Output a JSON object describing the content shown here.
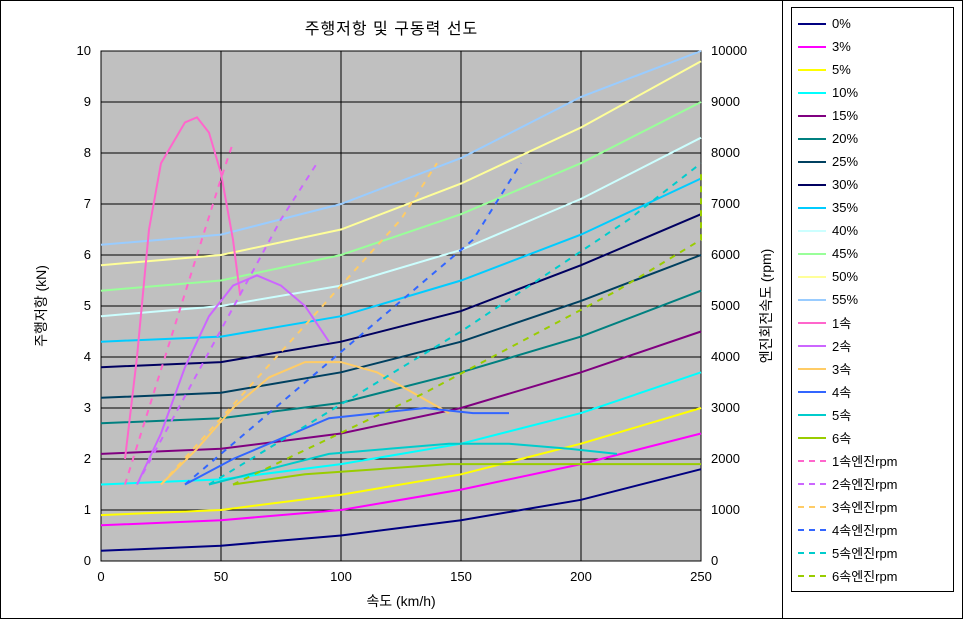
{
  "title": "주행저항 및 구동력 선도",
  "xaxis": {
    "label": "속도 (km/h)",
    "min": 0,
    "max": 250,
    "ticks": [
      0,
      50,
      100,
      150,
      200,
      250
    ],
    "label_fontsize": 14
  },
  "yaxis_left": {
    "label": "주행저항 (kN)",
    "min": 0,
    "max": 10,
    "ticks": [
      0,
      1,
      2,
      3,
      4,
      5,
      6,
      7,
      8,
      9,
      10
    ],
    "label_fontsize": 14
  },
  "yaxis_right": {
    "label": "엔진회전속도 (rpm)",
    "min": 0,
    "max": 10000,
    "ticks": [
      0,
      1000,
      2000,
      3000,
      4000,
      5000,
      6000,
      7000,
      8000,
      9000,
      10000
    ],
    "label_fontsize": 14
  },
  "plot_bg": "#c0c0c0",
  "grid_color": "#000000",
  "series_resistance": [
    {
      "id": "0%",
      "color": "#000080",
      "points": [
        [
          0,
          0.2
        ],
        [
          50,
          0.3
        ],
        [
          100,
          0.5
        ],
        [
          150,
          0.8
        ],
        [
          200,
          1.2
        ],
        [
          250,
          1.8
        ]
      ]
    },
    {
      "id": "3%",
      "color": "#ff00ff",
      "points": [
        [
          0,
          0.7
        ],
        [
          50,
          0.8
        ],
        [
          100,
          1.0
        ],
        [
          150,
          1.4
        ],
        [
          200,
          1.9
        ],
        [
          250,
          2.5
        ]
      ]
    },
    {
      "id": "5%",
      "color": "#ffff00",
      "points": [
        [
          0,
          0.9
        ],
        [
          50,
          1.0
        ],
        [
          100,
          1.3
        ],
        [
          150,
          1.7
        ],
        [
          200,
          2.3
        ],
        [
          250,
          3.0
        ]
      ]
    },
    {
      "id": "10%",
      "color": "#00ffff",
      "points": [
        [
          0,
          1.5
        ],
        [
          50,
          1.6
        ],
        [
          100,
          1.9
        ],
        [
          150,
          2.3
        ],
        [
          200,
          2.9
        ],
        [
          250,
          3.7
        ]
      ]
    },
    {
      "id": "15%",
      "color": "#800080",
      "points": [
        [
          0,
          2.1
        ],
        [
          50,
          2.2
        ],
        [
          100,
          2.5
        ],
        [
          150,
          3.0
        ],
        [
          200,
          3.7
        ],
        [
          250,
          4.5
        ]
      ]
    },
    {
      "id": "20%",
      "color": "#008080",
      "points": [
        [
          0,
          2.7
        ],
        [
          50,
          2.8
        ],
        [
          100,
          3.1
        ],
        [
          150,
          3.7
        ],
        [
          200,
          4.4
        ],
        [
          250,
          5.3
        ]
      ]
    },
    {
      "id": "25%",
      "color": "#004060",
      "points": [
        [
          0,
          3.2
        ],
        [
          50,
          3.3
        ],
        [
          100,
          3.7
        ],
        [
          150,
          4.3
        ],
        [
          200,
          5.1
        ],
        [
          250,
          6.0
        ]
      ]
    },
    {
      "id": "30%",
      "color": "#000060",
      "points": [
        [
          0,
          3.8
        ],
        [
          50,
          3.9
        ],
        [
          100,
          4.3
        ],
        [
          150,
          4.9
        ],
        [
          200,
          5.8
        ],
        [
          250,
          6.8
        ]
      ]
    },
    {
      "id": "35%",
      "color": "#00ccff",
      "points": [
        [
          0,
          4.3
        ],
        [
          50,
          4.4
        ],
        [
          100,
          4.8
        ],
        [
          150,
          5.5
        ],
        [
          200,
          6.4
        ],
        [
          250,
          7.5
        ]
      ]
    },
    {
      "id": "40%",
      "color": "#ccffff",
      "points": [
        [
          0,
          4.8
        ],
        [
          50,
          5.0
        ],
        [
          100,
          5.4
        ],
        [
          150,
          6.1
        ],
        [
          200,
          7.1
        ],
        [
          250,
          8.3
        ]
      ]
    },
    {
      "id": "45%",
      "color": "#99ff99",
      "points": [
        [
          0,
          5.3
        ],
        [
          50,
          5.5
        ],
        [
          100,
          6.0
        ],
        [
          150,
          6.8
        ],
        [
          200,
          7.8
        ],
        [
          250,
          9.0
        ]
      ]
    },
    {
      "id": "50%",
      "color": "#ffff99",
      "points": [
        [
          0,
          5.8
        ],
        [
          50,
          6.0
        ],
        [
          100,
          6.5
        ],
        [
          150,
          7.4
        ],
        [
          200,
          8.5
        ],
        [
          250,
          9.8
        ]
      ]
    },
    {
      "id": "55%",
      "color": "#99ccff",
      "points": [
        [
          0,
          6.2
        ],
        [
          50,
          6.4
        ],
        [
          100,
          7.0
        ],
        [
          150,
          7.9
        ],
        [
          200,
          9.1
        ],
        [
          250,
          10.0
        ]
      ]
    }
  ],
  "series_gear_force": [
    {
      "id": "1속",
      "color": "#ff66cc",
      "dash": "none",
      "points": [
        [
          10,
          2.0
        ],
        [
          15,
          4.0
        ],
        [
          20,
          6.5
        ],
        [
          25,
          7.8
        ],
        [
          30,
          8.2
        ],
        [
          35,
          8.6
        ],
        [
          40,
          8.7
        ],
        [
          45,
          8.4
        ],
        [
          50,
          7.6
        ],
        [
          55,
          6.3
        ],
        [
          58,
          5.2
        ]
      ]
    },
    {
      "id": "2속",
      "color": "#cc66ff",
      "dash": "none",
      "points": [
        [
          15,
          1.5
        ],
        [
          25,
          2.5
        ],
        [
          35,
          3.8
        ],
        [
          45,
          4.8
        ],
        [
          55,
          5.4
        ],
        [
          65,
          5.6
        ],
        [
          75,
          5.4
        ],
        [
          85,
          5.0
        ],
        [
          95,
          4.3
        ]
      ]
    },
    {
      "id": "3속",
      "color": "#ffcc66",
      "dash": "none",
      "points": [
        [
          25,
          1.5
        ],
        [
          40,
          2.2
        ],
        [
          55,
          3.0
        ],
        [
          70,
          3.6
        ],
        [
          85,
          3.9
        ],
        [
          100,
          3.9
        ],
        [
          115,
          3.7
        ],
        [
          130,
          3.3
        ],
        [
          145,
          2.9
        ]
      ]
    },
    {
      "id": "4속",
      "color": "#3366ff",
      "dash": "none",
      "points": [
        [
          35,
          1.5
        ],
        [
          55,
          2.0
        ],
        [
          75,
          2.4
        ],
        [
          95,
          2.8
        ],
        [
          115,
          2.9
        ],
        [
          135,
          3.0
        ],
        [
          155,
          2.9
        ],
        [
          170,
          2.9
        ]
      ]
    },
    {
      "id": "5속",
      "color": "#00cccc",
      "dash": "none",
      "points": [
        [
          45,
          1.5
        ],
        [
          70,
          1.8
        ],
        [
          95,
          2.1
        ],
        [
          120,
          2.2
        ],
        [
          145,
          2.3
        ],
        [
          170,
          2.3
        ],
        [
          195,
          2.2
        ],
        [
          215,
          2.1
        ]
      ]
    },
    {
      "id": "6속",
      "color": "#99cc00",
      "dash": "none",
      "points": [
        [
          55,
          1.5
        ],
        [
          85,
          1.7
        ],
        [
          115,
          1.8
        ],
        [
          145,
          1.9
        ],
        [
          175,
          1.9
        ],
        [
          205,
          1.9
        ],
        [
          235,
          1.9
        ],
        [
          250,
          1.9
        ]
      ]
    }
  ],
  "series_engine_rpm": [
    {
      "id": "1속엔진rpm",
      "color": "#ff66cc",
      "dash": "6,6",
      "points": [
        [
          10,
          1500
        ],
        [
          20,
          3000
        ],
        [
          30,
          4500
        ],
        [
          40,
          6000
        ],
        [
          50,
          7500
        ],
        [
          55,
          8200
        ]
      ]
    },
    {
      "id": "2속엔진rpm",
      "color": "#cc66ff",
      "dash": "6,6",
      "points": [
        [
          15,
          1500
        ],
        [
          30,
          2800
        ],
        [
          45,
          4100
        ],
        [
          60,
          5400
        ],
        [
          75,
          6700
        ],
        [
          90,
          7800
        ]
      ]
    },
    {
      "id": "3속엔진rpm",
      "color": "#ffcc66",
      "dash": "6,6",
      "points": [
        [
          25,
          1500
        ],
        [
          50,
          2800
        ],
        [
          75,
          4100
        ],
        [
          100,
          5400
        ],
        [
          125,
          6700
        ],
        [
          140,
          7800
        ]
      ]
    },
    {
      "id": "4속엔진rpm",
      "color": "#3366ff",
      "dash": "6,6",
      "points": [
        [
          35,
          1500
        ],
        [
          65,
          2700
        ],
        [
          95,
          3900
        ],
        [
          125,
          5100
        ],
        [
          155,
          6300
        ],
        [
          175,
          7800
        ]
      ]
    },
    {
      "id": "5속엔진rpm",
      "color": "#00cccc",
      "dash": "6,6",
      "points": [
        [
          45,
          1500
        ],
        [
          80,
          2500
        ],
        [
          115,
          3500
        ],
        [
          150,
          4500
        ],
        [
          185,
          5600
        ],
        [
          220,
          6700
        ],
        [
          250,
          7800
        ]
      ]
    },
    {
      "id": "6속엔진rpm",
      "color": "#99cc00",
      "dash": "6,6",
      "points": [
        [
          55,
          1500
        ],
        [
          95,
          2400
        ],
        [
          135,
          3300
        ],
        [
          175,
          4300
        ],
        [
          215,
          5300
        ],
        [
          250,
          6300
        ],
        [
          250,
          7600
        ]
      ]
    }
  ],
  "legend": [
    {
      "label": "0%",
      "color": "#000080",
      "dash": "solid"
    },
    {
      "label": "3%",
      "color": "#ff00ff",
      "dash": "solid"
    },
    {
      "label": "5%",
      "color": "#ffff00",
      "dash": "solid"
    },
    {
      "label": "10%",
      "color": "#00ffff",
      "dash": "solid"
    },
    {
      "label": "15%",
      "color": "#800080",
      "dash": "solid"
    },
    {
      "label": "20%",
      "color": "#008080",
      "dash": "solid"
    },
    {
      "label": "25%",
      "color": "#004060",
      "dash": "solid"
    },
    {
      "label": "30%",
      "color": "#000060",
      "dash": "solid"
    },
    {
      "label": "35%",
      "color": "#00ccff",
      "dash": "solid"
    },
    {
      "label": "40%",
      "color": "#ccffff",
      "dash": "solid"
    },
    {
      "label": "45%",
      "color": "#99ff99",
      "dash": "solid"
    },
    {
      "label": "50%",
      "color": "#ffff99",
      "dash": "solid"
    },
    {
      "label": "55%",
      "color": "#99ccff",
      "dash": "solid"
    },
    {
      "label": "1속",
      "color": "#ff66cc",
      "dash": "solid"
    },
    {
      "label": "2속",
      "color": "#cc66ff",
      "dash": "solid"
    },
    {
      "label": "3속",
      "color": "#ffcc66",
      "dash": "solid"
    },
    {
      "label": "4속",
      "color": "#3366ff",
      "dash": "solid"
    },
    {
      "label": "5속",
      "color": "#00cccc",
      "dash": "solid"
    },
    {
      "label": "6속",
      "color": "#99cc00",
      "dash": "solid"
    },
    {
      "label": "1속엔진rpm",
      "color": "#ff66cc",
      "dash": "dashed"
    },
    {
      "label": "2속엔진rpm",
      "color": "#cc66ff",
      "dash": "dashed"
    },
    {
      "label": "3속엔진rpm",
      "color": "#ffcc66",
      "dash": "dashed"
    },
    {
      "label": "4속엔진rpm",
      "color": "#3366ff",
      "dash": "dashed"
    },
    {
      "label": "5속엔진rpm",
      "color": "#00cccc",
      "dash": "dashed"
    },
    {
      "label": "6속엔진rpm",
      "color": "#99cc00",
      "dash": "dashed"
    }
  ]
}
